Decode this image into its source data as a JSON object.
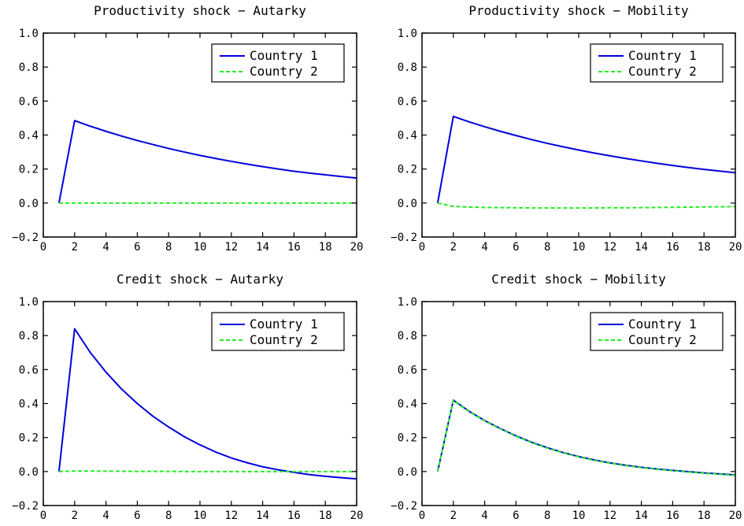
{
  "chart_data": [
    {
      "type": "line",
      "title": "Productivity shock − Autarky",
      "xlim": [
        0,
        20
      ],
      "ylim": [
        -0.2,
        1.0
      ],
      "x_ticks": [
        0,
        2,
        4,
        6,
        8,
        10,
        12,
        14,
        16,
        18,
        20
      ],
      "y_ticks": [
        -0.2,
        0.0,
        0.2,
        0.4,
        0.6,
        0.8,
        1.0
      ],
      "x_tick_labels": [
        "0",
        "2",
        "4",
        "6",
        "8",
        "10",
        "12",
        "14",
        "16",
        "18",
        "20"
      ],
      "y_tick_labels": [
        "−0.2",
        "0.0",
        "0.2",
        "0.4",
        "0.6",
        "0.8",
        "1.0"
      ],
      "legend_position": "top-right",
      "x": [
        1,
        2,
        3,
        4,
        5,
        6,
        7,
        8,
        9,
        10,
        11,
        12,
        13,
        14,
        15,
        16,
        17,
        18,
        19,
        20
      ],
      "series": [
        {
          "name": "Country 1",
          "color": "#0000dd",
          "dash": "solid",
          "values": [
            0.0,
            0.485,
            0.452,
            0.422,
            0.394,
            0.368,
            0.344,
            0.321,
            0.3,
            0.28,
            0.262,
            0.245,
            0.229,
            0.214,
            0.2,
            0.187,
            0.176,
            0.166,
            0.156,
            0.147
          ]
        },
        {
          "name": "Country 2",
          "color": "#22ee22",
          "dash": "dashed",
          "values": [
            0.0,
            0.0,
            0.0,
            0.0,
            0.0,
            0.0,
            0.0,
            0.0,
            0.0,
            0.0,
            0.0,
            0.0,
            0.0,
            0.0,
            0.0,
            0.0,
            0.0,
            0.0,
            0.0,
            0.0
          ]
        }
      ]
    },
    {
      "type": "line",
      "title": "Productivity shock − Mobility",
      "xlim": [
        0,
        20
      ],
      "ylim": [
        -0.2,
        1.0
      ],
      "x_ticks": [
        0,
        2,
        4,
        6,
        8,
        10,
        12,
        14,
        16,
        18,
        20
      ],
      "y_ticks": [
        -0.2,
        0.0,
        0.2,
        0.4,
        0.6,
        0.8,
        1.0
      ],
      "x_tick_labels": [
        "0",
        "2",
        "4",
        "6",
        "8",
        "10",
        "12",
        "14",
        "16",
        "18",
        "20"
      ],
      "y_tick_labels": [
        "−0.2",
        "0.0",
        "0.2",
        "0.4",
        "0.6",
        "0.8",
        "1.0"
      ],
      "legend_position": "top-right",
      "x": [
        1,
        2,
        3,
        4,
        5,
        6,
        7,
        8,
        9,
        10,
        11,
        12,
        13,
        14,
        15,
        16,
        17,
        18,
        19,
        20
      ],
      "series": [
        {
          "name": "Country 1",
          "color": "#0000dd",
          "dash": "solid",
          "values": [
            0.0,
            0.51,
            0.478,
            0.449,
            0.422,
            0.397,
            0.373,
            0.351,
            0.331,
            0.312,
            0.294,
            0.278,
            0.262,
            0.248,
            0.234,
            0.221,
            0.209,
            0.198,
            0.188,
            0.178
          ]
        },
        {
          "name": "Country 2",
          "color": "#22ee22",
          "dash": "dashed",
          "values": [
            0.0,
            -0.02,
            -0.024,
            -0.026,
            -0.027,
            -0.028,
            -0.029,
            -0.029,
            -0.029,
            -0.029,
            -0.029,
            -0.028,
            -0.028,
            -0.027,
            -0.026,
            -0.025,
            -0.024,
            -0.023,
            -0.022,
            -0.021
          ]
        }
      ]
    },
    {
      "type": "line",
      "title": "Credit shock − Autarky",
      "xlim": [
        0,
        20
      ],
      "ylim": [
        -0.2,
        1.0
      ],
      "x_ticks": [
        0,
        2,
        4,
        6,
        8,
        10,
        12,
        14,
        16,
        18,
        20
      ],
      "y_ticks": [
        -0.2,
        0.0,
        0.2,
        0.4,
        0.6,
        0.8,
        1.0
      ],
      "x_tick_labels": [
        "0",
        "2",
        "4",
        "6",
        "8",
        "10",
        "12",
        "14",
        "16",
        "18",
        "20"
      ],
      "y_tick_labels": [
        "−0.2",
        "0.0",
        "0.2",
        "0.4",
        "0.6",
        "0.8",
        "1.0"
      ],
      "legend_position": "top-right",
      "x": [
        1,
        2,
        3,
        4,
        5,
        6,
        7,
        8,
        9,
        10,
        11,
        12,
        13,
        14,
        15,
        16,
        17,
        18,
        19,
        20
      ],
      "series": [
        {
          "name": "Country 1",
          "color": "#0000dd",
          "dash": "solid",
          "values": [
            0.0,
            0.84,
            0.7,
            0.585,
            0.485,
            0.4,
            0.325,
            0.262,
            0.205,
            0.157,
            0.115,
            0.08,
            0.052,
            0.028,
            0.01,
            -0.005,
            -0.018,
            -0.028,
            -0.036,
            -0.043
          ]
        },
        {
          "name": "Country 2",
          "color": "#22ee22",
          "dash": "dashed",
          "values": [
            0.0,
            0.003,
            0.003,
            0.002,
            0.002,
            0.001,
            0.001,
            0.001,
            0.0,
            0.0,
            0.0,
            0.0,
            0.0,
            0.0,
            0.0,
            0.0,
            0.0,
            0.0,
            0.0,
            0.0
          ]
        }
      ]
    },
    {
      "type": "line",
      "title": "Credit shock − Mobility",
      "xlim": [
        0,
        20
      ],
      "ylim": [
        -0.2,
        1.0
      ],
      "x_ticks": [
        0,
        2,
        4,
        6,
        8,
        10,
        12,
        14,
        16,
        18,
        20
      ],
      "y_ticks": [
        -0.2,
        0.0,
        0.2,
        0.4,
        0.6,
        0.8,
        1.0
      ],
      "x_tick_labels": [
        "0",
        "2",
        "4",
        "6",
        "8",
        "10",
        "12",
        "14",
        "16",
        "18",
        "20"
      ],
      "y_tick_labels": [
        "−0.2",
        "0.0",
        "0.2",
        "0.4",
        "0.6",
        "0.8",
        "1.0"
      ],
      "legend_position": "top-right",
      "x": [
        1,
        2,
        3,
        4,
        5,
        6,
        7,
        8,
        9,
        10,
        11,
        12,
        13,
        14,
        15,
        16,
        17,
        18,
        19,
        20
      ],
      "series": [
        {
          "name": "Country 1",
          "color": "#0000dd",
          "dash": "solid",
          "values": [
            0.0,
            0.42,
            0.355,
            0.3,
            0.253,
            0.21,
            0.172,
            0.14,
            0.112,
            0.088,
            0.068,
            0.051,
            0.037,
            0.025,
            0.015,
            0.007,
            -0.001,
            -0.008,
            -0.014,
            -0.02
          ]
        },
        {
          "name": "Country 2",
          "color": "#22ee22",
          "dash": "dashed",
          "values": [
            0.0,
            0.418,
            0.353,
            0.298,
            0.251,
            0.208,
            0.17,
            0.138,
            0.11,
            0.086,
            0.066,
            0.049,
            0.035,
            0.023,
            0.013,
            0.005,
            -0.003,
            -0.01,
            -0.016,
            -0.022
          ]
        }
      ]
    }
  ]
}
